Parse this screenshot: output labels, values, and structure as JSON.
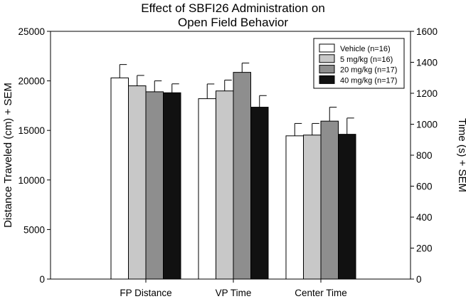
{
  "chart_data": {
    "type": "bar",
    "title_lines": [
      "Effect of SBFI26 Administration on",
      "Open Field Behavior"
    ],
    "xlabel": "",
    "ylabel_left": "Distance Traveled (cm) + SEM",
    "ylabel_right": "Time (s) + SEM",
    "ylim_left": [
      0,
      25000
    ],
    "ylim_right": [
      0,
      1600
    ],
    "yticks_left": [
      0,
      5000,
      10000,
      15000,
      20000,
      25000
    ],
    "yticks_right": [
      0,
      200,
      400,
      600,
      800,
      1000,
      1200,
      1400,
      1600
    ],
    "categories": [
      "FP Distance",
      "VP Time",
      "Center Time"
    ],
    "category_axis": [
      "left",
      "right",
      "right"
    ],
    "grid": false,
    "legend_position": "top-right",
    "series": [
      {
        "name": "Vehicle (n=16)",
        "color": "#ffffff",
        "values": [
          20300,
          1165,
          925
        ],
        "errors": [
          1350,
          95,
          80
        ]
      },
      {
        "name": "5 mg/kg (n=16)",
        "color": "#c8c8c8",
        "values": [
          19500,
          1215,
          930
        ],
        "errors": [
          1050,
          70,
          75
        ]
      },
      {
        "name": "20 mg/kg (n=17)",
        "color": "#8e8e8e",
        "values": [
          18900,
          1335,
          1020
        ],
        "errors": [
          1100,
          60,
          90
        ]
      },
      {
        "name": "40 mg/kg (n=17)",
        "color": "#111111",
        "values": [
          18800,
          1110,
          935
        ],
        "errors": [
          900,
          75,
          105
        ]
      }
    ]
  }
}
